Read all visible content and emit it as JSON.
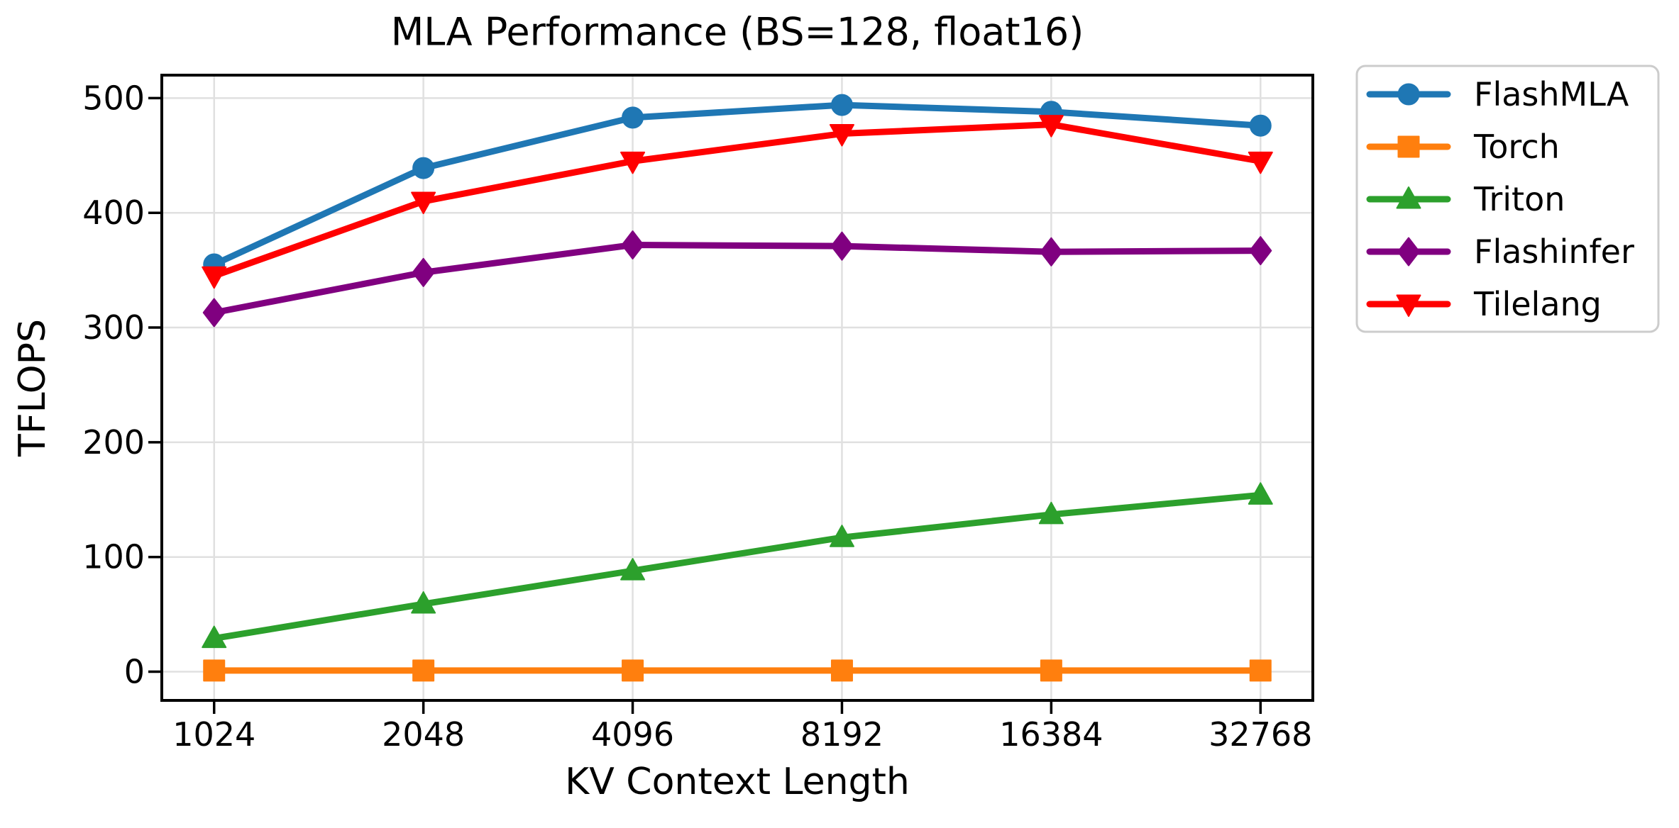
{
  "chart_data": {
    "type": "line",
    "title": "MLA Performance (BS=128, float16)",
    "xlabel": "KV Context Length",
    "ylabel": "TFLOPS",
    "categories": [
      "1024",
      "2048",
      "4096",
      "8192",
      "16384",
      "32768"
    ],
    "yticks": [
      0,
      100,
      200,
      300,
      400,
      500
    ],
    "ylim": [
      -25,
      520
    ],
    "grid": true,
    "legend_position": "outside-upper-right",
    "colors": {
      "grid": "#e0e0e0",
      "spine": "#000000",
      "legend_border": "#cccccc",
      "background": "#ffffff"
    },
    "series": [
      {
        "name": "FlashMLA",
        "color": "#1f77b4",
        "marker": "circle",
        "values": [
          355,
          439,
          483,
          494,
          488,
          476
        ]
      },
      {
        "name": "Torch",
        "color": "#ff7f0e",
        "marker": "square",
        "values": [
          1,
          1,
          1,
          1,
          1,
          1
        ]
      },
      {
        "name": "Triton",
        "color": "#2ca02c",
        "marker": "triangle-up",
        "values": [
          29,
          59,
          88,
          117,
          137,
          154
        ]
      },
      {
        "name": "Flashinfer",
        "color": "#800080",
        "marker": "diamond",
        "values": [
          313,
          348,
          372,
          371,
          366,
          367
        ]
      },
      {
        "name": "Tilelang",
        "color": "#ff0000",
        "marker": "triangle-down",
        "values": [
          345,
          410,
          445,
          469,
          477,
          445
        ]
      }
    ]
  }
}
